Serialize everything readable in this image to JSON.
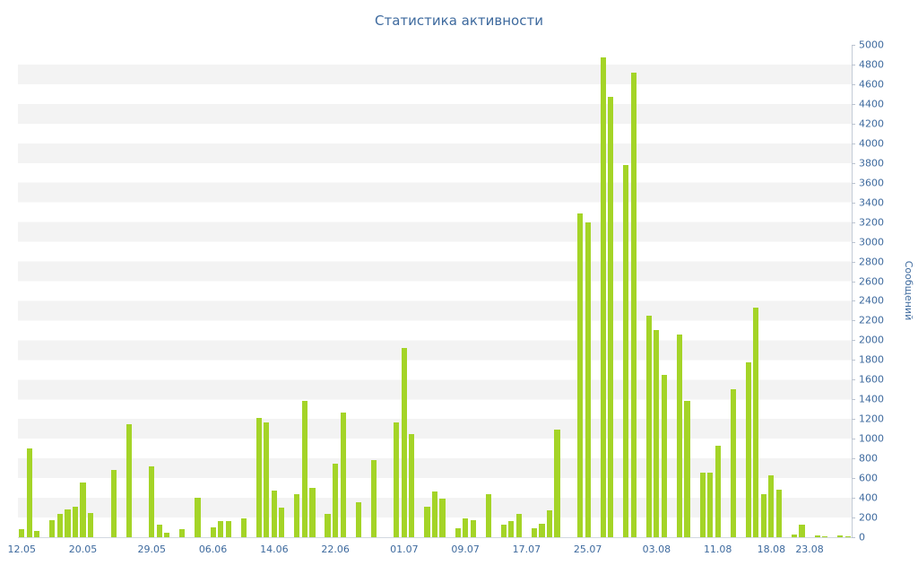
{
  "colors": {
    "bar": "#a4d427",
    "axis_text": "#3e6a9e",
    "stripe": "#f3f3f3",
    "axis_line": "#c3cbd6",
    "background": "#ffffff"
  },
  "chart_data": {
    "type": "bar",
    "title": "Статистика активности",
    "xlabel": "",
    "ylabel": "Сообщений",
    "ylim": [
      0,
      5000
    ],
    "y_tick_step": 200,
    "y_ticks": [
      0,
      200,
      400,
      600,
      800,
      1000,
      1200,
      1400,
      1600,
      1800,
      2000,
      2200,
      2400,
      2600,
      2800,
      3000,
      3200,
      3400,
      3600,
      3800,
      4000,
      4200,
      4400,
      4600,
      4800,
      5000
    ],
    "y_axis_side": "right",
    "grid": "horizontal-stripes",
    "legend": "none",
    "x_tick_labels": [
      "12.05",
      "20.05",
      "29.05",
      "06.06",
      "14.06",
      "22.06",
      "01.07",
      "09.07",
      "17.07",
      "25.07",
      "03.08",
      "11.08",
      "18.08",
      "23.08"
    ],
    "x_tick_positions": [
      0,
      8,
      17,
      25,
      33,
      41,
      50,
      58,
      66,
      74,
      83,
      91,
      98,
      103
    ],
    "values": [
      80,
      900,
      60,
      0,
      170,
      240,
      280,
      310,
      560,
      250,
      0,
      0,
      680,
      0,
      1150,
      0,
      0,
      720,
      130,
      50,
      0,
      80,
      0,
      400,
      0,
      100,
      160,
      160,
      0,
      190,
      0,
      1210,
      1165,
      470,
      300,
      0,
      440,
      1380,
      500,
      0,
      240,
      745,
      1270,
      0,
      355,
      0,
      780,
      0,
      0,
      1170,
      1920,
      1045,
      0,
      310,
      465,
      390,
      0,
      90,
      190,
      170,
      0,
      435,
      0,
      130,
      160,
      235,
      0,
      90,
      140,
      270,
      1090,
      0,
      0,
      3290,
      3200,
      0,
      4870,
      4470,
      0,
      3780,
      4720,
      0,
      2250,
      2100,
      1650,
      0,
      2060,
      1380,
      0,
      660,
      660,
      930,
      0,
      1500,
      0,
      1780,
      2330,
      440,
      630,
      480,
      0,
      30,
      130,
      0,
      20,
      10,
      0,
      20,
      10
    ]
  }
}
